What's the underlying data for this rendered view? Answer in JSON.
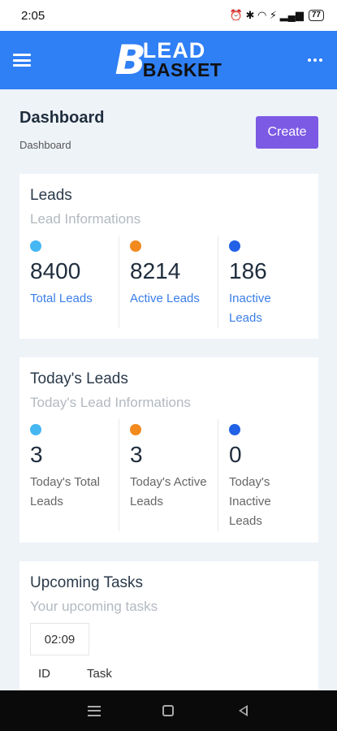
{
  "status_bar": {
    "time": "2:05",
    "icons": "⏰ ✱ ◠ ⚡ ▂▄▆",
    "battery": "77"
  },
  "header": {
    "logo_b": "B",
    "logo_lead": "LEAD",
    "logo_basket": "BASKET",
    "menu_icon": "hamburger-icon",
    "more_icon": "more-horizontal-icon"
  },
  "page": {
    "title": "Dashboard",
    "breadcrumb": "Dashboard",
    "create_label": "Create"
  },
  "leads_card": {
    "title": "Leads",
    "subtitle": "Lead Informations",
    "stats": [
      {
        "value": "8400",
        "label": "Total Leads",
        "color": "#45b7f2"
      },
      {
        "value": "8214",
        "label": "Active Leads",
        "color": "#f28a1e"
      },
      {
        "value": "186",
        "label": "Inactive Leads",
        "color": "#2162e6"
      }
    ]
  },
  "today_card": {
    "title": "Today's Leads",
    "subtitle": "Today's Lead Informations",
    "stats": [
      {
        "value": "3",
        "label": "Today's Total Leads",
        "color": "#45b7f2"
      },
      {
        "value": "3",
        "label": "Today's Active Leads",
        "color": "#f28a1e"
      },
      {
        "value": "0",
        "label": "Today's Inactive Leads",
        "color": "#2162e6"
      }
    ]
  },
  "tasks_card": {
    "title": "Upcoming Tasks",
    "subtitle": "Your upcoming tasks",
    "time": "02:09",
    "columns": [
      "ID",
      "Task"
    ]
  }
}
